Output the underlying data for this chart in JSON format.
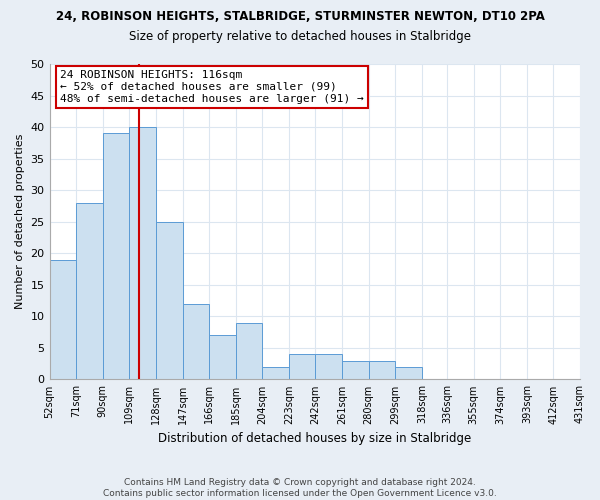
{
  "title1": "24, ROBINSON HEIGHTS, STALBRIDGE, STURMINSTER NEWTON, DT10 2PA",
  "title2": "Size of property relative to detached houses in Stalbridge",
  "xlabel": "Distribution of detached houses by size in Stalbridge",
  "ylabel": "Number of detached properties",
  "footer1": "Contains HM Land Registry data © Crown copyright and database right 2024.",
  "footer2": "Contains public sector information licensed under the Open Government Licence v3.0.",
  "annotation_line1": "24 ROBINSON HEIGHTS: 116sqm",
  "annotation_line2": "← 52% of detached houses are smaller (99)",
  "annotation_line3": "48% of semi-detached houses are larger (91) →",
  "bar_edges": [
    52,
    71,
    90,
    109,
    128,
    147,
    166,
    185,
    204,
    223,
    242,
    261,
    280,
    299,
    318,
    336,
    355,
    374,
    393,
    412,
    431
  ],
  "bar_heights": [
    19,
    28,
    39,
    40,
    25,
    12,
    7,
    9,
    2,
    4,
    4,
    3,
    3,
    2,
    0,
    0,
    0,
    0,
    0,
    0
  ],
  "bar_color": "#cce0f0",
  "bar_edge_color": "#5b9bd5",
  "redline_x": 116,
  "ylim": [
    0,
    50
  ],
  "yticks": [
    0,
    5,
    10,
    15,
    20,
    25,
    30,
    35,
    40,
    45,
    50
  ],
  "fig_bg_color": "#e8eef5",
  "plot_bg_color": "#ffffff",
  "grid_color": "#dce6f0",
  "annotation_box_color": "#ffffff",
  "annotation_box_edge": "#cc0000",
  "redline_color": "#cc0000",
  "title1_fontsize": 8.5,
  "title2_fontsize": 8.5,
  "ylabel_fontsize": 8,
  "xlabel_fontsize": 8.5,
  "ytick_fontsize": 8,
  "xtick_fontsize": 7,
  "footer_fontsize": 6.5,
  "annotation_fontsize": 8
}
